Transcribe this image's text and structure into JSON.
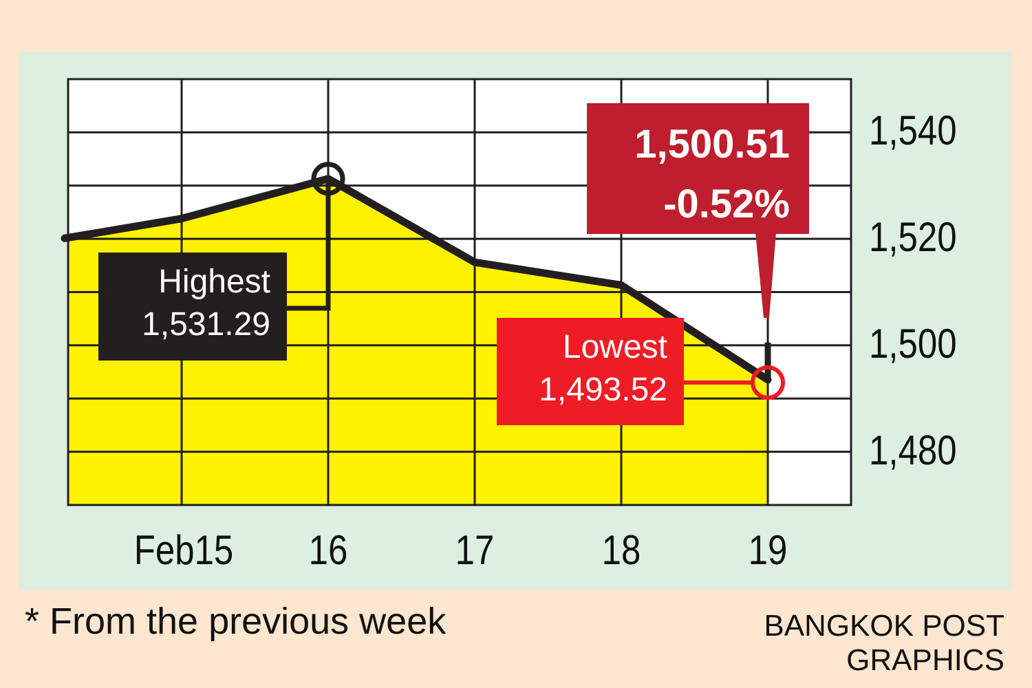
{
  "chart_data": {
    "type": "area",
    "x": [
      "Feb15",
      "16",
      "17",
      "18",
      "19"
    ],
    "ylim": [
      1470,
      1550
    ],
    "yticks": [
      1480,
      1500,
      1520,
      1540
    ],
    "ytick_labels": [
      "1,480",
      "1,500",
      "1,520",
      "1,540"
    ],
    "series": [
      {
        "points": [
          {
            "x": 14.6,
            "y": 1520.1
          },
          {
            "x": 15.0,
            "y": 1523.8
          },
          {
            "x": 16.0,
            "y": 1531.29
          },
          {
            "x": 17.0,
            "y": 1515.6
          },
          {
            "x": 18.0,
            "y": 1511.3
          },
          {
            "x": 19.0,
            "y": 1493.52
          },
          {
            "x": 19.0,
            "y": 1500.51
          }
        ]
      }
    ],
    "grid": true,
    "annotations": {
      "highest": {
        "label": "Highest",
        "value": "1,531.29",
        "x": 16.0,
        "y": 1531.29
      },
      "lowest": {
        "label": "Lowest",
        "value": "1,493.52",
        "x": 19.0,
        "y": 1493.52
      },
      "close": {
        "value": "1,500.51",
        "change": "-0.52%",
        "x": 19.0,
        "y": 1500.51
      }
    }
  },
  "footnote": "* From the previous week",
  "credit": "BANGKOK POST GRAPHICS",
  "colors": {
    "background": "#fce6d0",
    "panel": "#dcefe0",
    "area_fill": "#fff200",
    "line": "#231f20",
    "highest_box": "#231f20",
    "lowest_box": "#ee1c25",
    "close_box": "#bf1e2e"
  }
}
